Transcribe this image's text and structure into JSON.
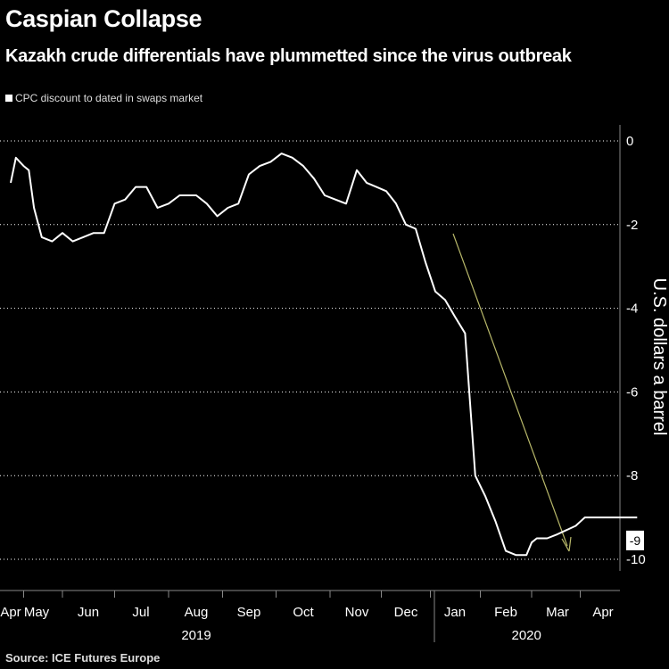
{
  "chart_data": {
    "type": "line",
    "title": "Caspian Collapse",
    "subtitle": "Kazakh crude differentials have plummetted since the virus outbreak",
    "ylabel": "U.S. dollars a barrel",
    "ylim": [
      -10,
      0
    ],
    "yticks": [
      0,
      -2,
      -4,
      -6,
      -8,
      -10
    ],
    "ytick_labels": [
      "0",
      "-2",
      "-4",
      "-6",
      "-8",
      "-10"
    ],
    "grid": true,
    "legend_position": "top-left",
    "x_tick_labels": [
      "Apr",
      "May",
      "Jun",
      "Jul",
      "Aug",
      "Sep",
      "Oct",
      "Nov",
      "Dec",
      "Jan",
      "Feb",
      "Mar",
      "Apr"
    ],
    "x_year_labels": [
      {
        "label": "2019",
        "month_index": 4
      },
      {
        "label": "2020",
        "month_index": 10.4
      }
    ],
    "last_value_label": "-9",
    "annotation": "arrow",
    "annotation_color": "#b8b86a",
    "series": [
      {
        "name": "CPC discount to dated in swaps market",
        "color": "#ffffff",
        "x": [
          0.0,
          0.2,
          0.35,
          0.5,
          0.7,
          0.9,
          1.1,
          1.3,
          1.5,
          1.7,
          1.9,
          2.1,
          2.3,
          2.5,
          2.7,
          2.9,
          3.1,
          3.3,
          3.5,
          3.7,
          3.8,
          4.0,
          4.2,
          4.4,
          4.6,
          4.8,
          5.0,
          5.2,
          5.4,
          5.6,
          5.8,
          6.0,
          6.2,
          6.4,
          6.6,
          6.8,
          7.0,
          7.2,
          7.4,
          7.6,
          7.8,
          8.0,
          8.2,
          8.4,
          8.6,
          8.8,
          9.0,
          9.2,
          9.4,
          9.6,
          9.8,
          10.0,
          10.2,
          10.4,
          10.5,
          10.6,
          10.8,
          11.0,
          11.2,
          11.4,
          11.5,
          11.6,
          11.7,
          11.8,
          11.85,
          11.9,
          11.95,
          12.0,
          12.1,
          12.2,
          12.35,
          12.55,
          12.75
        ],
        "y": [
          -1.0,
          -0.4,
          -0.5,
          -0.6,
          -0.7,
          -1.6,
          -2.3,
          -2.4,
          -2.2,
          -2.4,
          -2.3,
          -2.2,
          -2.2,
          -1.5,
          -1.4,
          -1.1,
          -1.1,
          -1.6,
          -1.5,
          -1.3,
          -1.3,
          -1.3,
          -1.5,
          -1.8,
          -1.6,
          -1.5,
          -0.8,
          -0.6,
          -0.5,
          -0.3,
          -0.4,
          -0.6,
          -0.9,
          -1.3,
          -1.4,
          -1.5,
          -0.7,
          -1.0,
          -1.1,
          -1.2,
          -1.5,
          -2.0,
          -2.1,
          -2.9,
          -3.6,
          -3.8,
          -4.2,
          -4.6,
          -8.0,
          -8.5,
          -9.1,
          -9.8,
          -9.9,
          -9.9,
          -9.6,
          -9.5,
          -9.5,
          -9.4,
          -9.3,
          -9.2,
          -9.1,
          -9.0,
          -9.0,
          -9.0,
          -9.0,
          -9.0,
          -9.0,
          -9.0,
          -9.0,
          -9.0,
          -9.0,
          -9.0,
          -9.0
        ]
      }
    ]
  },
  "source": "Source: ICE Futures Europe"
}
